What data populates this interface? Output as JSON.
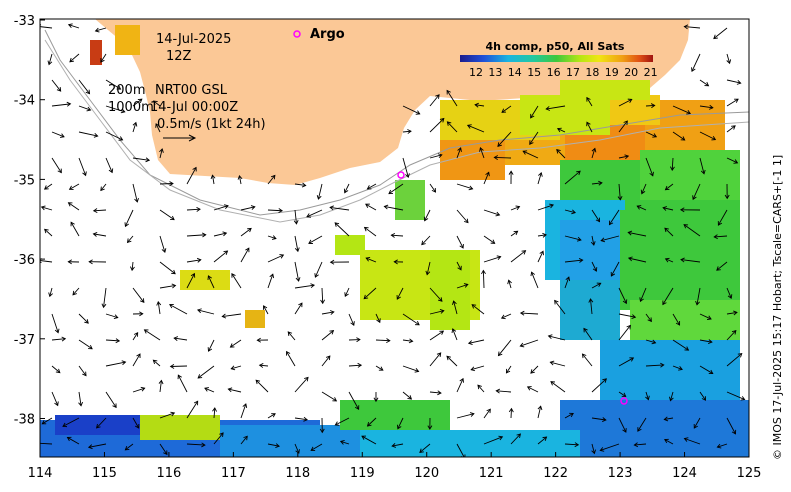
{
  "map": {
    "date": "14-Jul-2025",
    "hour": "12Z",
    "depth_line1": "200m",
    "depth_line2": "1000m",
    "product": "NRT00 GSL",
    "product_time": "14-Jul 00:00Z",
    "vector_scale": "0.5m/s (1kt 24h)",
    "argo_label": "Argo",
    "colorbar_title": "4h comp, p50, All Sats",
    "colorbar_ticks": [
      "12",
      "13",
      "14",
      "15",
      "16",
      "17",
      "18",
      "19",
      "20",
      "21"
    ],
    "lon_ticks": [
      "114",
      "115",
      "116",
      "117",
      "118",
      "119",
      "120",
      "121",
      "122",
      "123",
      "124",
      "125"
    ],
    "lat_ticks": [
      "-33",
      "-34",
      "-35",
      "-36",
      "-37",
      "-38"
    ],
    "credit": "© IMOS 17-Jul-2025 15:17 Hobart; Tscale=CARS+[-1 1]",
    "colors": {
      "land": "#fbc896",
      "frame": "#000000",
      "argo": "#ff00ff"
    }
  }
}
